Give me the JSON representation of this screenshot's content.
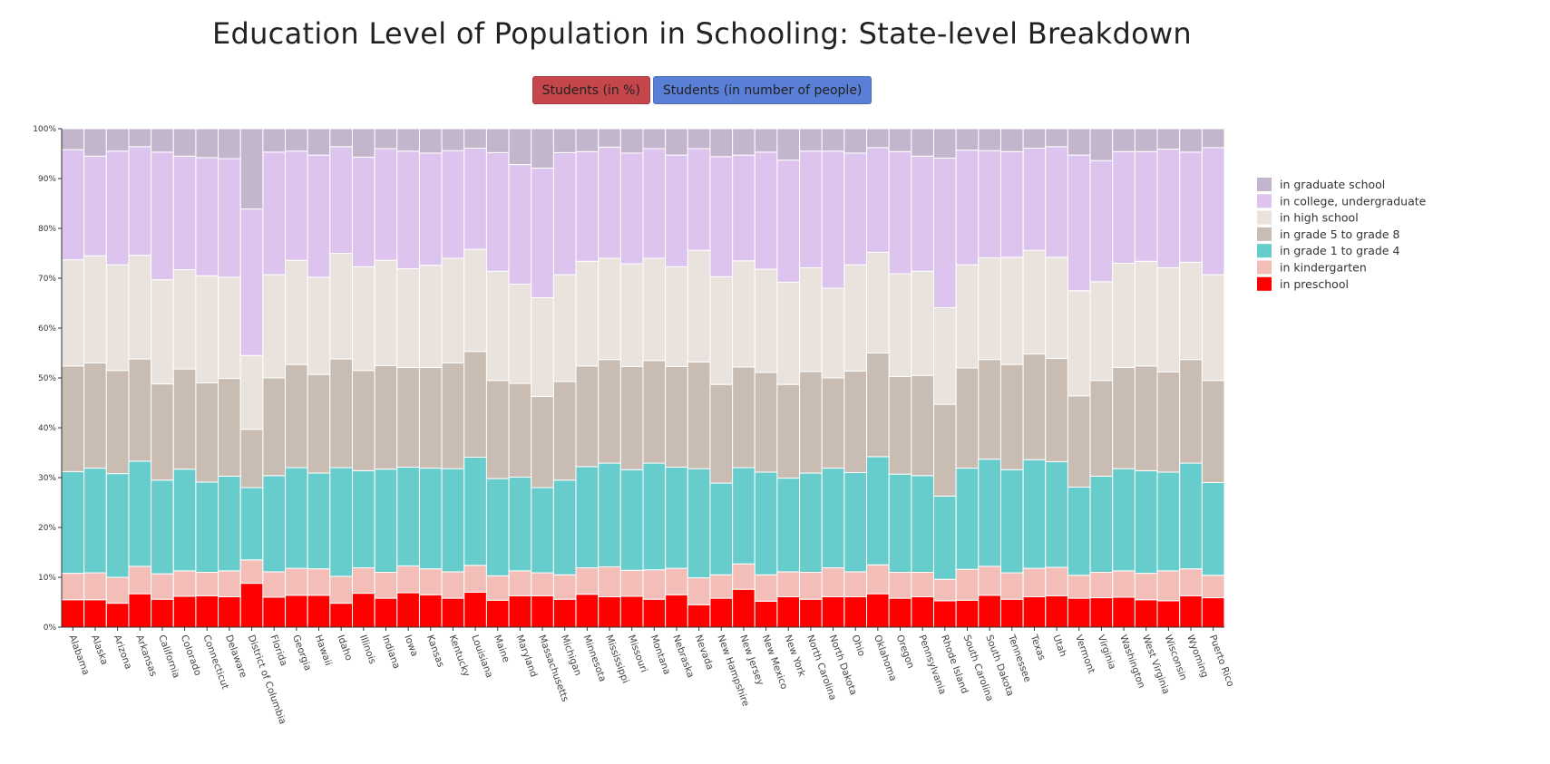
{
  "title": "Education Level of Population in Schooling: State-level Breakdown",
  "buttons": [
    {
      "label": "Students (in %)",
      "color": "#c5474c"
    },
    {
      "label": "Students (in number of people)",
      "color": "#5a7fd6"
    }
  ],
  "chart_data": {
    "type": "bar",
    "stacked": true,
    "normalized_percent": true,
    "ylim": [
      0,
      100
    ],
    "yticks": [
      "0%",
      "10%",
      "20%",
      "30%",
      "40%",
      "50%",
      "60%",
      "70%",
      "80%",
      "90%",
      "100%"
    ],
    "legend_position": "right",
    "categories": [
      "Alabama",
      "Alaska",
      "Arizona",
      "Arkansas",
      "California",
      "Colorado",
      "Connecticut",
      "Delaware",
      "District of Columbia",
      "Florida",
      "Georgia",
      "Hawaii",
      "Idaho",
      "Illinois",
      "Indiana",
      "Iowa",
      "Kansas",
      "Kentucky",
      "Louisiana",
      "Maine",
      "Maryland",
      "Massachusetts",
      "Michigan",
      "Minnesota",
      "Mississippi",
      "Missouri",
      "Montana",
      "Nebraska",
      "Nevada",
      "New Hampshire",
      "New Jersey",
      "New Mexico",
      "New York",
      "North Carolina",
      "North Dakota",
      "Ohio",
      "Oklahoma",
      "Oregon",
      "Pennsylvania",
      "Rhode Island",
      "South Carolina",
      "South Dakota",
      "Tennessee",
      "Texas",
      "Utah",
      "Vermont",
      "Virginia",
      "Washington",
      "West Virginia",
      "Wisconsin",
      "Wyoming",
      "Puerto Rico"
    ],
    "series": [
      {
        "name": "in preschool",
        "color": "#ff0000",
        "values": [
          5.5,
          5.5,
          4.8,
          6.7,
          5.6,
          6.2,
          6.3,
          6.1,
          8.8,
          6.0,
          6.4,
          6.4,
          4.8,
          6.8,
          5.8,
          6.9,
          6.5,
          5.8,
          7.0,
          5.4,
          6.3,
          6.3,
          5.6,
          6.6,
          6.1,
          6.2,
          5.6,
          6.5,
          4.5,
          5.8,
          7.6,
          5.2,
          6.1,
          5.6,
          6.1,
          6.1,
          6.7,
          5.8,
          6.1,
          5.3,
          5.4,
          6.4,
          5.6,
          6.1,
          6.3,
          5.8,
          5.9,
          6.0,
          5.5,
          5.3,
          6.3,
          5.9
        ]
      },
      {
        "name": "in kindergarten",
        "color": "#f3bdb8",
        "values": [
          5.3,
          5.4,
          5.2,
          5.5,
          5.1,
          5.1,
          4.7,
          5.2,
          4.7,
          5.1,
          5.4,
          5.3,
          5.4,
          5.1,
          5.2,
          5.4,
          5.2,
          5.3,
          5.4,
          4.9,
          5.0,
          4.6,
          4.9,
          5.3,
          6.0,
          5.2,
          5.9,
          5.3,
          5.4,
          4.7,
          5.1,
          5.3,
          5.0,
          5.4,
          5.8,
          5.0,
          5.8,
          5.2,
          4.9,
          4.3,
          6.2,
          5.8,
          5.3,
          5.7,
          5.7,
          4.6,
          5.1,
          5.3,
          5.3,
          6.0,
          5.4,
          4.5
        ]
      },
      {
        "name": "in grade 1 to grade 4",
        "color": "#66cccc",
        "values": [
          20.4,
          21.0,
          20.8,
          21.1,
          18.8,
          20.4,
          18.1,
          19.0,
          14.5,
          19.3,
          20.2,
          19.2,
          21.8,
          19.5,
          20.7,
          19.8,
          20.2,
          20.7,
          21.7,
          19.5,
          18.8,
          17.1,
          19.0,
          20.3,
          20.8,
          20.2,
          21.4,
          20.3,
          21.9,
          18.4,
          19.3,
          20.6,
          18.8,
          19.9,
          20.0,
          19.9,
          21.7,
          19.7,
          19.4,
          16.7,
          20.3,
          21.5,
          20.7,
          21.8,
          21.2,
          17.7,
          19.3,
          20.5,
          20.6,
          19.8,
          21.2,
          18.6
        ]
      },
      {
        "name": "in grade 5 to grade 8",
        "color": "#c9bcb2",
        "values": [
          21.2,
          21.1,
          20.7,
          20.5,
          19.3,
          20.1,
          19.9,
          19.6,
          11.7,
          19.6,
          20.7,
          19.8,
          21.8,
          20.1,
          20.8,
          20.0,
          20.2,
          21.2,
          21.2,
          19.7,
          18.8,
          18.3,
          19.8,
          20.2,
          20.8,
          20.7,
          20.6,
          20.2,
          21.4,
          19.8,
          20.2,
          20.0,
          18.8,
          20.4,
          18.1,
          20.4,
          20.8,
          19.6,
          20.1,
          18.4,
          20.1,
          20.0,
          21.1,
          21.2,
          20.7,
          18.3,
          19.2,
          20.3,
          21.0,
          20.1,
          20.8,
          20.5
        ]
      },
      {
        "name": "in high school",
        "color": "#e9e2dd",
        "values": [
          21.3,
          21.5,
          21.2,
          20.8,
          20.9,
          19.9,
          21.5,
          20.3,
          14.8,
          20.7,
          20.9,
          19.5,
          21.2,
          20.8,
          21.1,
          19.8,
          20.5,
          21.0,
          20.5,
          21.9,
          19.9,
          19.8,
          21.4,
          21.0,
          20.3,
          20.6,
          20.5,
          20.0,
          22.4,
          21.6,
          21.3,
          20.7,
          20.5,
          20.8,
          18.0,
          21.3,
          20.2,
          20.6,
          20.9,
          19.4,
          20.7,
          20.4,
          21.5,
          20.8,
          20.3,
          21.1,
          19.8,
          20.9,
          21.0,
          20.9,
          19.5,
          21.2
        ]
      },
      {
        "name": "in college, undergraduate",
        "color": "#dcc4ee",
        "values": [
          22.1,
          20.0,
          22.8,
          21.8,
          25.6,
          22.8,
          23.7,
          23.8,
          29.4,
          24.6,
          21.9,
          24.5,
          21.4,
          22.0,
          22.4,
          23.6,
          22.5,
          21.6,
          20.3,
          23.8,
          24.0,
          26.0,
          24.5,
          22.0,
          22.3,
          22.2,
          22.0,
          22.4,
          20.4,
          24.1,
          21.2,
          23.5,
          24.5,
          23.4,
          27.5,
          22.4,
          21.0,
          24.5,
          23.1,
          30.0,
          23.0,
          21.5,
          21.2,
          20.5,
          22.2,
          27.2,
          24.3,
          22.4,
          22.0,
          23.8,
          22.1,
          25.5
        ]
      },
      {
        "name": "in graduate school",
        "color": "#c3b5cc",
        "values": [
          4.2,
          5.5,
          4.5,
          3.6,
          4.7,
          5.5,
          5.8,
          6.0,
          16.1,
          4.7,
          4.5,
          5.3,
          3.6,
          5.7,
          4.0,
          4.5,
          4.9,
          4.4,
          3.9,
          4.8,
          7.2,
          7.9,
          4.8,
          4.6,
          3.7,
          4.9,
          4.0,
          5.3,
          4.0,
          5.6,
          5.3,
          4.7,
          6.3,
          4.5,
          4.5,
          4.9,
          3.8,
          4.6,
          5.5,
          5.9,
          4.3,
          4.4,
          4.6,
          3.9,
          3.6,
          5.3,
          6.4,
          4.6,
          4.6,
          4.1,
          4.7,
          3.8
        ]
      }
    ]
  }
}
